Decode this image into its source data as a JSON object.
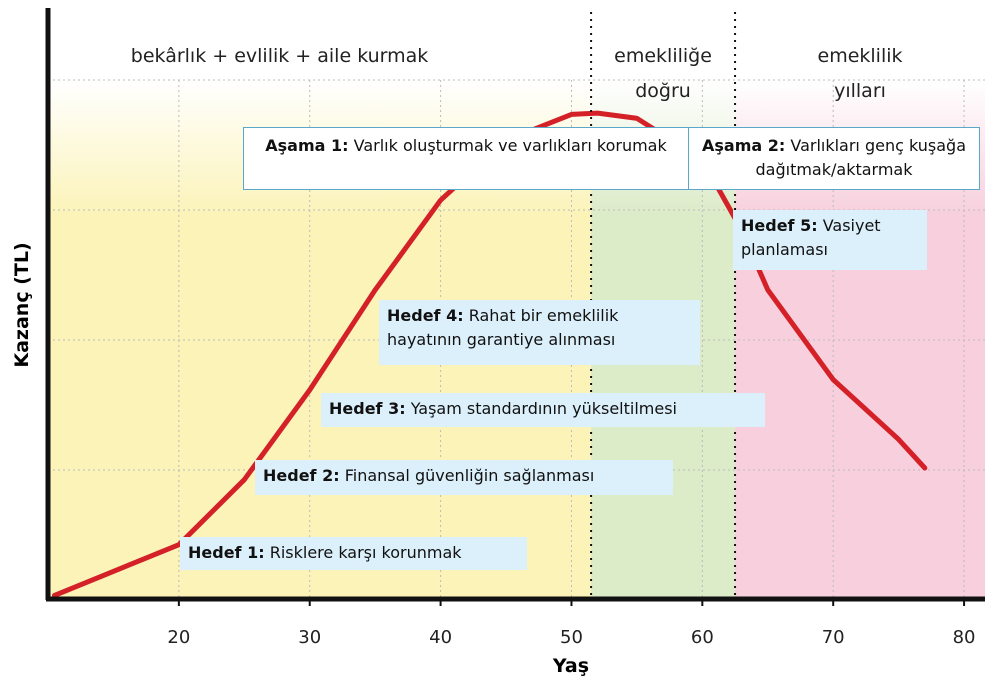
{
  "chart_data": {
    "type": "line",
    "y_label": "Kazanç (TL)",
    "x_label": "Yaş",
    "xlim": [
      10,
      81.6
    ],
    "xticks": [
      20,
      30,
      40,
      50,
      60,
      70,
      80
    ],
    "ylim": [
      0,
      4.5
    ],
    "x": [
      10.5,
      20,
      25,
      30,
      35,
      40,
      45,
      50,
      52,
      55,
      60,
      63,
      65,
      70,
      75,
      77
    ],
    "values": [
      0.02,
      0.41,
      0.91,
      1.6,
      2.37,
      3.06,
      3.52,
      3.72,
      3.73,
      3.69,
      3.37,
      2.83,
      2.37,
      1.68,
      1.22,
      1.0
    ],
    "color": "#d42027",
    "dividers": [
      51.5,
      62.5
    ],
    "phases": [
      {
        "lines": [
          "bekârlık + evlilik + aile kurmak"
        ],
        "color": "#fbf3b8"
      },
      {
        "lines": [
          "emekliliğe",
          "doğru"
        ],
        "color": "#dcebc8"
      },
      {
        "lines": [
          "emeklilik",
          "yılları"
        ],
        "color": "#f7cfdd"
      }
    ],
    "stages": [
      {
        "label": "Aşama 1:",
        "text": "Varlık oluşturmak ve varlıkları korumak"
      },
      {
        "label": "Aşama 2:",
        "text": "Varlıkları genç kuşağa dağıtmak/aktarmak"
      }
    ],
    "goals": [
      {
        "label": "Hedef 1:",
        "text": "Risklere karşı korunmak"
      },
      {
        "label": "Hedef 2:",
        "text": "Finansal güvenliğin sağlanması"
      },
      {
        "label": "Hedef 3:",
        "text": "Yaşam standardının yükseltilmesi"
      },
      {
        "label": "Hedef 4:",
        "text": "Rahat bir emeklilik hayatının garantiye alınması"
      },
      {
        "label": "Hedef 5:",
        "text": "Vasiyet planlaması"
      }
    ]
  }
}
